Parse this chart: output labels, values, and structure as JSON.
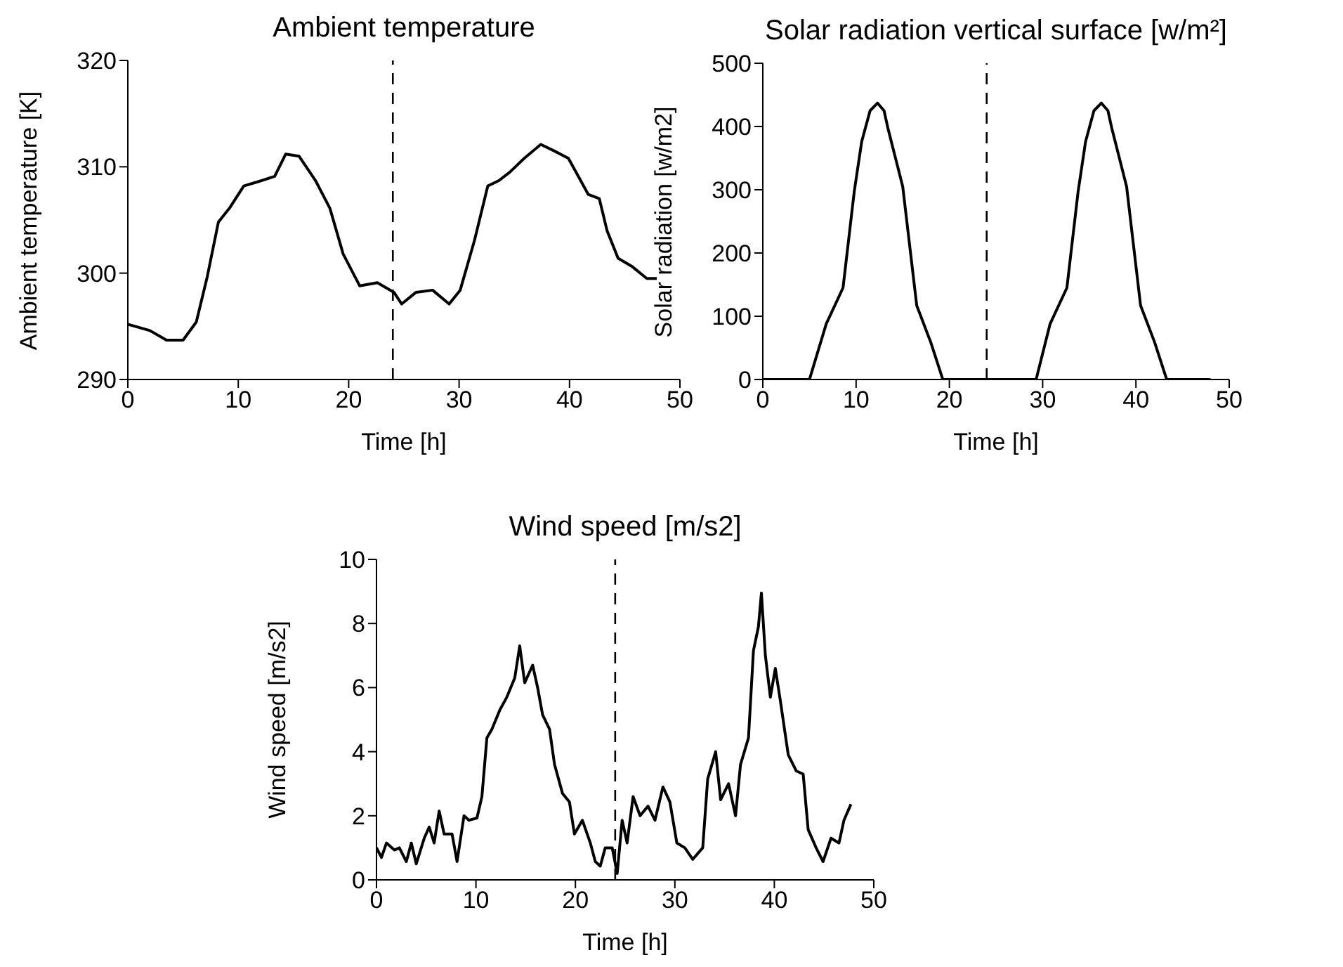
{
  "chart_data": [
    {
      "type": "line",
      "title": "Ambient temperature",
      "xlabel": "Time [h]",
      "ylabel": "Ambient temperature [K]",
      "x": [
        0,
        2,
        3.5,
        5,
        6.2,
        7.2,
        8.2,
        9.2,
        10.5,
        11.8,
        13.3,
        14.3,
        15.5,
        17,
        18.3,
        19.5,
        21,
        22.6,
        24.1,
        24.8,
        26.1,
        27.6,
        29.1,
        30.1,
        31.4,
        32.6,
        33.6,
        34.6,
        35.9,
        37.4,
        38.6,
        39.9,
        41.7,
        42.7,
        43.4,
        44.4,
        45.7,
        47,
        47.9
      ],
      "series": [
        {
          "color": "#000000",
          "values": [
            295.2,
            294.6,
            293.7,
            293.7,
            295.4,
            299.7,
            304.8,
            306.1,
            308.2,
            308.6,
            309.1,
            311.2,
            311.0,
            308.7,
            306.1,
            301.8,
            298.8,
            299.1,
            298.2,
            297.1,
            298.2,
            298.4,
            297.1,
            298.4,
            303.1,
            308.2,
            308.7,
            309.5,
            310.8,
            312.1,
            311.5,
            310.8,
            307.4,
            307.0,
            304.0,
            301.4,
            300.6,
            299.5,
            299.5
          ]
        }
      ],
      "xlim": [
        0,
        50
      ],
      "xticks": [
        0,
        10,
        20,
        30,
        40,
        50
      ],
      "ylim": [
        290,
        320
      ],
      "yticks": [
        290,
        300,
        310,
        320
      ],
      "ref_lines": [
        {
          "axis": "x",
          "value": 24,
          "line_style": "dashed"
        }
      ]
    },
    {
      "type": "line",
      "title": "Solar radiation vertical surface [w/m²]",
      "xlabel": "Time [h]",
      "ylabel": "Solar radiation [w/m2]",
      "x": [
        0,
        5,
        6.8,
        8.6,
        9.8,
        10.6,
        11.5,
        12.3,
        13,
        13.4,
        15,
        16.5,
        18,
        19.3,
        29.3,
        30.8,
        32.6,
        33.8,
        34.6,
        35.5,
        36.3,
        37,
        37.4,
        39,
        40.5,
        42,
        43.3,
        48
      ],
      "series": [
        {
          "color": "#000000",
          "values": [
            0,
            0,
            88,
            145,
            297,
            376,
            425,
            437,
            425,
            398,
            305,
            117,
            59,
            0,
            0,
            88,
            145,
            297,
            376,
            425,
            437,
            425,
            398,
            305,
            117,
            59,
            0,
            0
          ]
        }
      ],
      "xlim": [
        0,
        50
      ],
      "xticks": [
        0,
        10,
        20,
        30,
        40,
        50
      ],
      "ylim": [
        0,
        500
      ],
      "yticks": [
        0,
        100,
        200,
        300,
        400,
        500
      ],
      "ref_lines": [
        {
          "axis": "x",
          "value": 24,
          "line_style": "dashed"
        }
      ]
    },
    {
      "type": "line",
      "title": "Wind speed [m/s2]",
      "xlabel": "Time [h]",
      "ylabel": "Wind speed [m/s2]",
      "x": [
        0,
        0.5,
        1,
        1.8,
        2.3,
        3,
        3.5,
        4,
        4.8,
        5.3,
        5.8,
        6.3,
        6.8,
        7.6,
        8.1,
        8.8,
        9.3,
        10.1,
        10.6,
        11.1,
        11.6,
        12.4,
        13.1,
        13.9,
        14.4,
        14.9,
        15.7,
        16.2,
        16.7,
        17.4,
        17.9,
        18.7,
        19.4,
        19.9,
        20.7,
        21.5,
        22,
        22.5,
        23,
        23.7,
        24.2,
        24.7,
        25.2,
        25.8,
        26.5,
        27.3,
        28,
        28.8,
        29.5,
        30.2,
        31,
        31.8,
        32.8,
        33.3,
        34.1,
        34.6,
        35.4,
        36.1,
        36.6,
        37.4,
        37.9,
        38.4,
        38.7,
        39.1,
        39.6,
        40.1,
        40.6,
        41.4,
        42.2,
        42.9,
        43.4,
        44.2,
        44.9,
        45.7,
        46.5,
        47,
        47.7
      ],
      "series": [
        {
          "color": "#000000",
          "values": [
            1.0,
            0.7,
            1.15,
            0.93,
            1.0,
            0.57,
            1.15,
            0.5,
            1.3,
            1.65,
            1.15,
            2.15,
            1.43,
            1.43,
            0.57,
            2.0,
            1.86,
            1.93,
            2.6,
            4.43,
            4.7,
            5.3,
            5.7,
            6.3,
            7.3,
            6.15,
            6.7,
            6.0,
            5.15,
            4.7,
            3.6,
            2.7,
            2.43,
            1.43,
            1.86,
            1.15,
            0.57,
            0.43,
            1.0,
            1.0,
            0.2,
            1.86,
            1.15,
            2.6,
            2.0,
            2.3,
            1.86,
            2.9,
            2.43,
            1.15,
            1.0,
            0.64,
            1.0,
            3.15,
            4.0,
            2.5,
            3.0,
            2.0,
            3.6,
            4.43,
            7.15,
            7.9,
            8.95,
            7.0,
            5.7,
            6.6,
            5.6,
            3.9,
            3.4,
            3.3,
            1.57,
            1.0,
            0.57,
            1.3,
            1.15,
            1.86,
            2.36
          ]
        }
      ],
      "xlim": [
        0,
        50
      ],
      "xticks": [
        0,
        10,
        20,
        30,
        40,
        50
      ],
      "ylim": [
        0,
        10
      ],
      "yticks": [
        0,
        2,
        4,
        6,
        8,
        10
      ],
      "ref_lines": [
        {
          "axis": "x",
          "value": 24,
          "line_style": "dashed"
        }
      ]
    }
  ]
}
